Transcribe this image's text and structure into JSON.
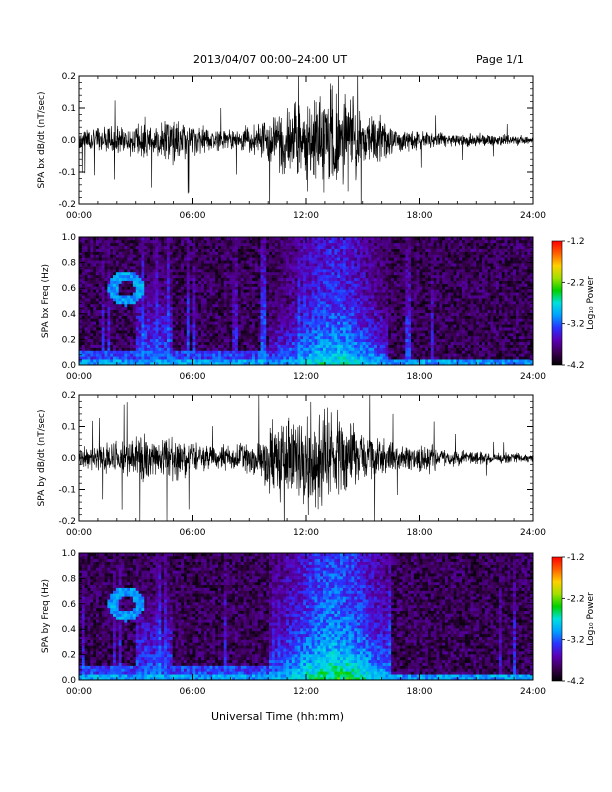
{
  "header": {
    "title": "2013/04/07  00:00–24:00 UT",
    "page": "Page 1/1"
  },
  "xaxis_label": "Universal Time (hh:mm)",
  "colors": {
    "colorbar_stops": [
      "#000000",
      "#3a0050",
      "#5a00b4",
      "#2a32ff",
      "#00a0ff",
      "#00e0e0",
      "#00d000",
      "#a0e000",
      "#ffd000",
      "#ff6000",
      "#ff0000"
    ]
  },
  "chart_data": [
    {
      "type": "line",
      "ylabel": "SPA bx dB/dt (nT/sec)",
      "x_unit": "hours UT",
      "xlim": [
        0,
        24
      ],
      "xticks": [
        "00:00",
        "06:00",
        "12:00",
        "18:00",
        "24:00"
      ],
      "ylim": [
        -0.2,
        0.2
      ],
      "yticks": [
        "-0.2",
        "-0.1",
        "0.0",
        "0.1",
        "0.2"
      ],
      "envelope": {
        "hours": [
          0,
          1,
          2,
          3,
          3.5,
          4,
          5,
          6,
          7,
          8,
          9,
          9.5,
          10,
          10.5,
          11,
          12,
          13,
          14,
          14.5,
          15,
          16,
          16.5,
          17,
          18,
          19,
          20,
          21,
          22,
          23,
          24
        ],
        "amplitude": [
          0.04,
          0.045,
          0.05,
          0.06,
          0.08,
          0.05,
          0.09,
          0.06,
          0.04,
          0.04,
          0.05,
          0.06,
          0.09,
          0.11,
          0.14,
          0.17,
          0.2,
          0.19,
          0.15,
          0.1,
          0.08,
          0.06,
          0.04,
          0.035,
          0.03,
          0.025,
          0.025,
          0.02,
          0.02,
          0.015
        ]
      }
    },
    {
      "type": "heatmap",
      "ylabel": "SPA bx Freq (Hz)",
      "x_unit": "hours UT",
      "xlim": [
        0,
        24
      ],
      "xticks": [
        "00:00",
        "06:00",
        "12:00",
        "18:00",
        "24:00"
      ],
      "ylim": [
        0,
        1
      ],
      "yticks": [
        "0.0",
        "0.2",
        "0.4",
        "0.6",
        "0.8",
        "1.0"
      ],
      "colorbar": {
        "label": "Log₁₀ Power",
        "range": [
          -4.2,
          -1.2
        ],
        "ticks": [
          "-1.2",
          "-2.2",
          "-3.2",
          "-4.2"
        ]
      },
      "features": [
        {
          "name": "band",
          "t0": 10,
          "t1": 16.3,
          "peak_hour": 13.5,
          "level": -2.6
        },
        {
          "name": "ring",
          "t0": 1.5,
          "t1": 3.5,
          "f_center": 0.6,
          "level": -3.0
        },
        {
          "name": "background",
          "level": -3.9
        }
      ]
    },
    {
      "type": "line",
      "ylabel": "SPA by dB/dt (nT/sec)",
      "x_unit": "hours UT",
      "xlim": [
        0,
        24
      ],
      "xticks": [
        "00:00",
        "06:00",
        "12:00",
        "18:00",
        "24:00"
      ],
      "ylim": [
        -0.2,
        0.2
      ],
      "yticks": [
        "-0.2",
        "-0.1",
        "0.0",
        "0.1",
        "0.2"
      ],
      "envelope": {
        "hours": [
          0,
          1,
          2,
          3,
          3.5,
          4,
          5,
          6,
          7,
          8,
          9,
          9.5,
          10,
          10.5,
          11,
          12,
          13,
          14,
          14.5,
          15,
          16,
          16.5,
          17,
          18,
          18.5,
          19,
          20,
          21,
          22,
          23,
          24
        ],
        "amplitude": [
          0.04,
          0.05,
          0.06,
          0.08,
          0.1,
          0.06,
          0.09,
          0.06,
          0.04,
          0.05,
          0.06,
          0.08,
          0.12,
          0.15,
          0.18,
          0.2,
          0.19,
          0.17,
          0.15,
          0.1,
          0.07,
          0.06,
          0.04,
          0.05,
          0.06,
          0.035,
          0.03,
          0.025,
          0.02,
          0.02,
          0.015
        ]
      }
    },
    {
      "type": "heatmap",
      "ylabel": "SPA by Freq (Hz)",
      "x_unit": "hours UT",
      "xlim": [
        0,
        24
      ],
      "xticks": [
        "00:00",
        "06:00",
        "12:00",
        "18:00",
        "24:00"
      ],
      "ylim": [
        0,
        1
      ],
      "yticks": [
        "0.0",
        "0.2",
        "0.4",
        "0.6",
        "0.8",
        "1.0"
      ],
      "colorbar": {
        "label": "Log₁₀ Power",
        "range": [
          -4.2,
          -1.2
        ],
        "ticks": [
          "-1.2",
          "-2.2",
          "-3.2",
          "-4.2"
        ]
      },
      "features": [
        {
          "name": "band",
          "t0": 10,
          "t1": 16.3,
          "peak_hour": 13.5,
          "level": -2.4
        },
        {
          "name": "ring",
          "t0": 1.5,
          "t1": 3.5,
          "f_center": 0.6,
          "level": -3.0
        },
        {
          "name": "background",
          "level": -3.9
        }
      ]
    }
  ]
}
